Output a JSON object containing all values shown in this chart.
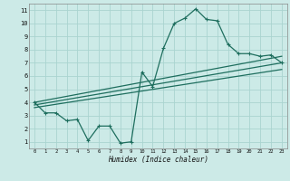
{
  "title": "",
  "xlabel": "Humidex (Indice chaleur)",
  "background_color": "#cceae7",
  "grid_color": "#aad4d0",
  "line_color": "#1e6e5e",
  "xlim": [
    -0.5,
    23.5
  ],
  "ylim": [
    0.5,
    11.5
  ],
  "xticks": [
    0,
    1,
    2,
    3,
    4,
    5,
    6,
    7,
    8,
    9,
    10,
    11,
    12,
    13,
    14,
    15,
    16,
    17,
    18,
    19,
    20,
    21,
    22,
    23
  ],
  "yticks": [
    1,
    2,
    3,
    4,
    5,
    6,
    7,
    8,
    9,
    10,
    11
  ],
  "curve1_x": [
    0,
    1,
    2,
    3,
    4,
    5,
    6,
    7,
    8,
    9,
    10,
    11,
    12,
    13,
    14,
    15,
    16,
    17,
    18,
    19,
    20,
    21,
    22,
    23
  ],
  "curve1_y": [
    4.0,
    3.2,
    3.2,
    2.6,
    2.7,
    1.1,
    2.2,
    2.2,
    0.9,
    1.0,
    6.3,
    5.2,
    8.1,
    10.0,
    10.4,
    11.1,
    10.3,
    10.2,
    8.4,
    7.7,
    7.7,
    7.5,
    7.6,
    7.0
  ],
  "line2_x": [
    0,
    23
  ],
  "line2_y": [
    3.6,
    6.5
  ],
  "line3_x": [
    0,
    23
  ],
  "line3_y": [
    3.8,
    7.0
  ],
  "line4_x": [
    0,
    23
  ],
  "line4_y": [
    4.0,
    7.5
  ]
}
